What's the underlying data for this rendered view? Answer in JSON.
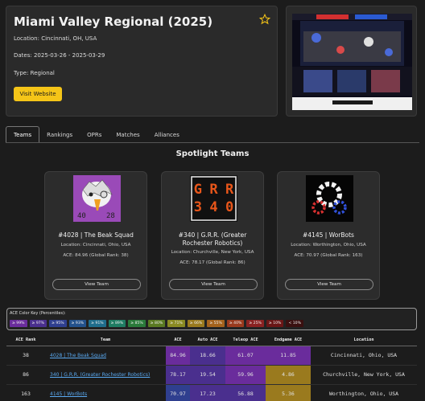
{
  "event": {
    "title": "Miami Valley Regional (2025)",
    "location": "Location: Cincinnati, OH, USA",
    "dates": "Dates: 2025-03-26 - 2025-03-29",
    "type": "Type: Regional",
    "visit_label": "Visit Website"
  },
  "tabs": [
    {
      "label": "Teams",
      "active": true
    },
    {
      "label": "Rankings",
      "active": false
    },
    {
      "label": "OPRs",
      "active": false
    },
    {
      "label": "Matches",
      "active": false
    },
    {
      "label": "Alliances",
      "active": false
    }
  ],
  "spotlight": {
    "title": "Spotlight Teams",
    "cards": [
      {
        "name": "#4028 | The Beak Squad",
        "location": "Location: Cincinnati, Ohio, USA",
        "ace": "ACE: 84.96 (Global Rank: 38)",
        "button": "View Team",
        "logo_text": [
          "40",
          "28"
        ]
      },
      {
        "name": "#340 | G.R.R. (Greater Rochester Robotics)",
        "location": "Location: Churchville, New York, USA",
        "ace": "ACE: 78.17 (Global Rank: 86)",
        "button": "View Team",
        "logo_text": [
          "G",
          "R",
          "R",
          "3",
          "4",
          "0"
        ]
      },
      {
        "name": "#4145 | WorBots",
        "location": "Location: Worthington, Ohio, USA",
        "ace": "ACE: 70.97 (Global Rank: 163)",
        "button": "View Team"
      }
    ]
  },
  "color_key": {
    "title": "ACE Color Key (Percentiles):",
    "chips": [
      {
        "label": "≥ 99%",
        "color": "#6a2c9c"
      },
      {
        "label": "≥ 97%",
        "color": "#4a2f8e"
      },
      {
        "label": "≥ 95%",
        "color": "#2f3f8f"
      },
      {
        "label": "≥ 93%",
        "color": "#23528c"
      },
      {
        "label": "≥ 91%",
        "color": "#1f6d8c"
      },
      {
        "label": "≥ 89%",
        "color": "#1f7d63"
      },
      {
        "label": "≥ 85%",
        "color": "#2a7a3a"
      },
      {
        "label": "≥ 80%",
        "color": "#5a7a22"
      },
      {
        "label": "≥ 71%",
        "color": "#8a8a22"
      },
      {
        "label": "≥ 66%",
        "color": "#9a7a1e"
      },
      {
        "label": "≥ 55%",
        "color": "#a4621c"
      },
      {
        "label": "≥ 40%",
        "color": "#9a3a1e"
      },
      {
        "label": "≥ 25%",
        "color": "#8a2222"
      },
      {
        "label": "≥ 10%",
        "color": "#6a1616"
      },
      {
        "label": "< 10%",
        "color": "#3a1010"
      }
    ]
  },
  "table": {
    "headers": [
      "ACE Rank",
      "Team",
      "ACE",
      "Auto ACE",
      "Teleop ACE",
      "Endgame ACE",
      "Location"
    ],
    "rows": [
      {
        "rank": "38",
        "team": "4028 | The Beak Squad",
        "ace": "84.96",
        "auto": "18.66",
        "teleop": "61.07",
        "endgame": "11.85",
        "location": "Cincinnati, Ohio, USA",
        "colors": [
          "#6a2c9c",
          "#4a2f8e",
          "#6a2c9c",
          "#6a2c9c"
        ]
      },
      {
        "rank": "86",
        "team": "340 | G.R.R. (Greater Rochester Robotics)",
        "ace": "78.17",
        "auto": "19.54",
        "teleop": "59.96",
        "endgame": "4.86",
        "location": "Churchville, New York, USA",
        "colors": [
          "#4a2f8e",
          "#4a2f8e",
          "#6a2c9c",
          "#9a7a1e"
        ]
      },
      {
        "rank": "163",
        "team": "4145 | WorBots",
        "ace": "70.97",
        "auto": "17.23",
        "teleop": "56.88",
        "endgame": "5.36",
        "location": "Worthington, Ohio, USA",
        "colors": [
          "#2f3f8f",
          "#4a2f8e",
          "#4a2f8e",
          "#9a7a1e"
        ]
      }
    ]
  }
}
